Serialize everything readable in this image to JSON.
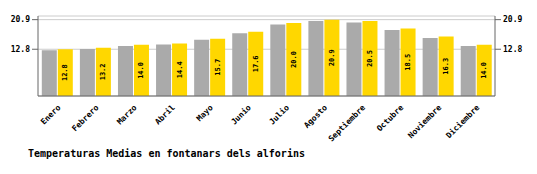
{
  "chart_data": {
    "type": "bar",
    "title": "Temperaturas Medias en fontanars dels alforins",
    "categories": [
      "Enero",
      "Febrero",
      "Marzo",
      "Abril",
      "Mayo",
      "Junio",
      "Julio",
      "Agosto",
      "Septiembre",
      "Octubre",
      "Noviembre",
      "Diciembre"
    ],
    "series": [
      {
        "color": "#AAAAAA",
        "values": [
          12.5,
          12.9,
          13.7,
          14.1,
          15.4,
          17.2,
          19.6,
          20.5,
          20.1,
          18.1,
          15.9,
          13.7
        ]
      },
      {
        "color": "#FFD700",
        "values": [
          12.8,
          13.2,
          14.0,
          14.4,
          15.7,
          17.6,
          20.0,
          20.9,
          20.5,
          18.5,
          16.3,
          14.0
        ],
        "data_labels": true,
        "value_labels": [
          "12.8",
          "13.2",
          "14.0",
          "14.4",
          "15.7",
          "17.6",
          "20.0",
          "20.9",
          "20.5",
          "18.5",
          "16.3",
          "14.0"
        ]
      }
    ],
    "ylim": [
      0,
      21.9
    ],
    "yticks": [
      12.8,
      20.9
    ],
    "y2lim": [
      0,
      21.9
    ],
    "y2ticks": [
      12.8,
      20.9
    ],
    "grid": true
  }
}
